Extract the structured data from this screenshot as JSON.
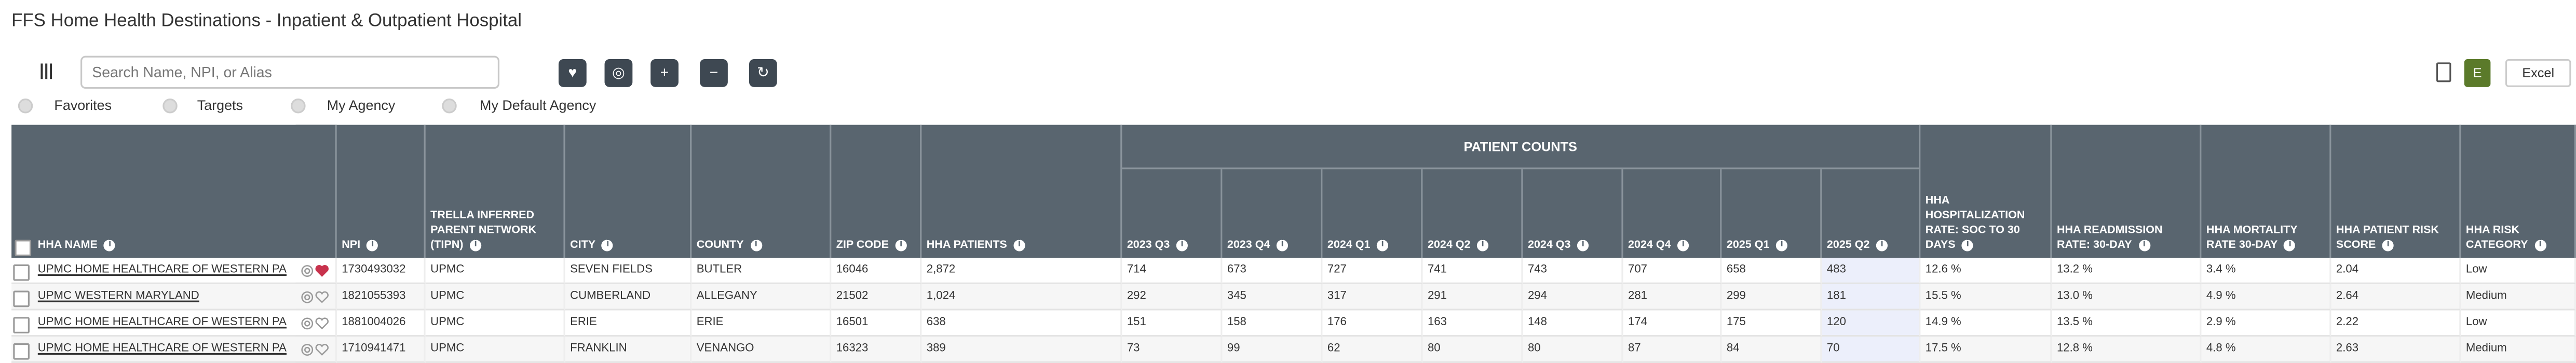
{
  "header": {
    "title": "FFS Home Health Destinations - Inpatient & Outpatient Hospital"
  },
  "toolbar": {
    "search_placeholder": "Search Name, NPI, or Alias",
    "export_initial": "E",
    "export_label": "Excel"
  },
  "filters": [
    "Favorites",
    "Targets",
    "My Agency",
    "My Default Agency"
  ],
  "table": {
    "group_header": "PATIENT COUNTS",
    "columns": [
      "HHA NAME",
      "NPI",
      "TRELLA INFERRED PARENT NETWORK (TIPN)",
      "CITY",
      "COUNTY",
      "ZIP CODE",
      "HHA PATIENTS",
      "2023 Q3",
      "2023 Q4",
      "2024 Q1",
      "2024 Q2",
      "2024 Q3",
      "2024 Q4",
      "2025 Q1",
      "2025 Q2",
      "HHA HOSPITALIZATION RATE: SOC TO 30 DAYS",
      "HHA READMISSION RATE: 30-DAY",
      "HHA MORTALITY RATE 30-DAY",
      "HHA PATIENT RISK SCORE",
      "HHA RISK CATEGORY"
    ],
    "rows": [
      {
        "favorite": true,
        "cells": [
          "UPMC HOME HEALTHCARE OF WESTERN PA",
          "1730493032",
          "UPMC",
          "SEVEN FIELDS",
          "BUTLER",
          "16046",
          "2,872",
          "714",
          "673",
          "727",
          "741",
          "743",
          "707",
          "658",
          "483",
          "12.6 %",
          "13.2 %",
          "3.4 %",
          "2.04",
          "Low"
        ]
      },
      {
        "favorite": false,
        "cells": [
          "UPMC WESTERN MARYLAND",
          "1821055393",
          "UPMC",
          "CUMBERLAND",
          "ALLEGANY",
          "21502",
          "1,024",
          "292",
          "345",
          "317",
          "291",
          "294",
          "281",
          "299",
          "181",
          "15.5 %",
          "13.0 %",
          "4.9 %",
          "2.64",
          "Medium"
        ]
      },
      {
        "favorite": false,
        "cells": [
          "UPMC HOME HEALTHCARE OF WESTERN PA",
          "1881004026",
          "UPMC",
          "ERIE",
          "ERIE",
          "16501",
          "638",
          "151",
          "158",
          "176",
          "163",
          "148",
          "174",
          "175",
          "120",
          "14.9 %",
          "13.5 %",
          "2.9 %",
          "2.22",
          "Low"
        ]
      },
      {
        "favorite": false,
        "cells": [
          "UPMC HOME HEALTHCARE OF WESTERN PA",
          "1710941471",
          "UPMC",
          "FRANKLIN",
          "VENANGO",
          "16323",
          "389",
          "73",
          "99",
          "62",
          "80",
          "80",
          "87",
          "84",
          "70",
          "17.5 %",
          "12.8 %",
          "4.8 %",
          "2.63",
          "Medium"
        ]
      }
    ]
  }
}
